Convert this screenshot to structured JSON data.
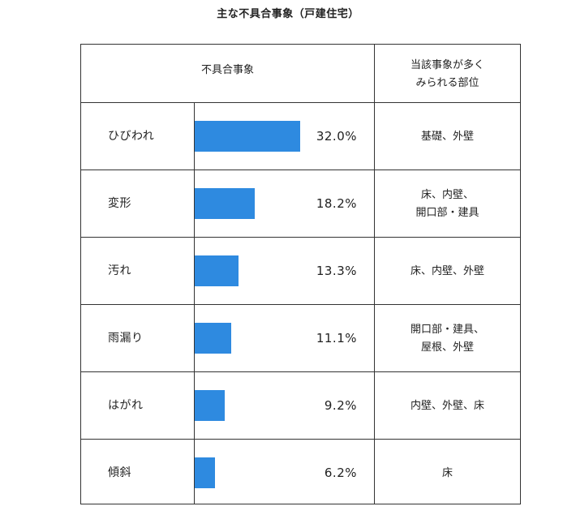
{
  "chart_data": {
    "type": "table",
    "title": "主な不具合事象（戸建住宅）",
    "columns": [
      "不具合事象",
      "当該事象が多く\nみられる部位"
    ],
    "xlim": [
      0,
      32
    ],
    "rows": [
      {
        "category": "ひびわれ",
        "value": 32.0,
        "label": "32.0%",
        "parts": "基礎、外壁"
      },
      {
        "category": "変形",
        "value": 18.2,
        "label": "18.2%",
        "parts": "床、内壁、\n開口部・建具"
      },
      {
        "category": "汚れ",
        "value": 13.3,
        "label": "13.3%",
        "parts": "床、内壁、外壁"
      },
      {
        "category": "雨漏り",
        "value": 11.1,
        "label": "11.1%",
        "parts": "開口部・建具、\n屋根、外壁"
      },
      {
        "category": "はがれ",
        "value": 9.2,
        "label": "9.2%",
        "parts": "内壁、外壁、床"
      },
      {
        "category": "傾斜",
        "value": 6.2,
        "label": "6.2%",
        "parts": "床"
      }
    ],
    "bar_color": "#2e8ae0"
  }
}
